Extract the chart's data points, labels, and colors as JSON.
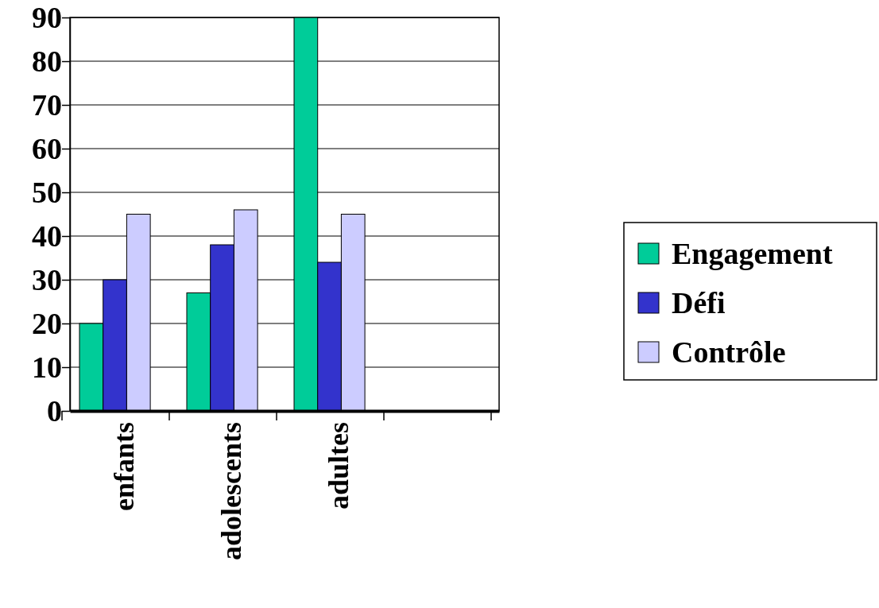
{
  "chart_data": {
    "type": "bar",
    "categories": [
      "enfants",
      "adolescents",
      "adultes",
      null
    ],
    "series": [
      {
        "name": "Engagement",
        "color": "#00cc99",
        "values": [
          20,
          27,
          90,
          null
        ]
      },
      {
        "name": "Défi",
        "color": "#3333cc",
        "values": [
          30,
          38,
          34,
          null
        ]
      },
      {
        "name": "Contrôle",
        "color": "#ccccff",
        "values": [
          45,
          46,
          45,
          null
        ]
      }
    ],
    "ylim": [
      0,
      90
    ],
    "yticks": [
      0,
      10,
      20,
      30,
      40,
      50,
      60,
      70,
      80,
      90
    ],
    "grid": "y",
    "legend": "right"
  }
}
